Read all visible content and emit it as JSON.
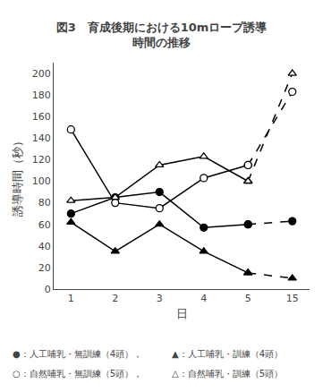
{
  "chart_data": {
    "type": "line",
    "title": "図3　育成後期における10mロープ誘導\n時間の推移",
    "x_label": "日",
    "y_label": "誘導時間（秒）",
    "categories": [
      "1",
      "2",
      "3",
      "4",
      "5",
      "15"
    ],
    "series": [
      {
        "values": [
          70,
          85,
          90,
          57,
          60,
          63
        ],
        "marker": "circle",
        "color": "#000000"
      },
      {
        "values": [
          62,
          35,
          60,
          35,
          15,
          10
        ],
        "marker": "triangle-up",
        "color": "#000000"
      },
      {
        "values": [
          148,
          80,
          75,
          103,
          115,
          183
        ],
        "marker": "circle-open",
        "color": "#000000"
      },
      {
        "values": [
          82,
          85,
          115,
          123,
          100,
          200
        ],
        "marker": "triangle-up-open",
        "color": "#000000"
      }
    ],
    "ylim": [
      0,
      210
    ],
    "yticks": [
      0,
      20,
      40,
      60,
      80,
      100,
      120,
      140,
      160,
      180,
      200
    ],
    "grid": false,
    "annotations": [
      "●：人工哺乳・無訓練（4頭），",
      "▲：人工哺乳・訓練（4頭）",
      "○：自然哺乳・無訓練（5頭），",
      "△：自然哺乳・訓練（5頭）"
    ]
  }
}
